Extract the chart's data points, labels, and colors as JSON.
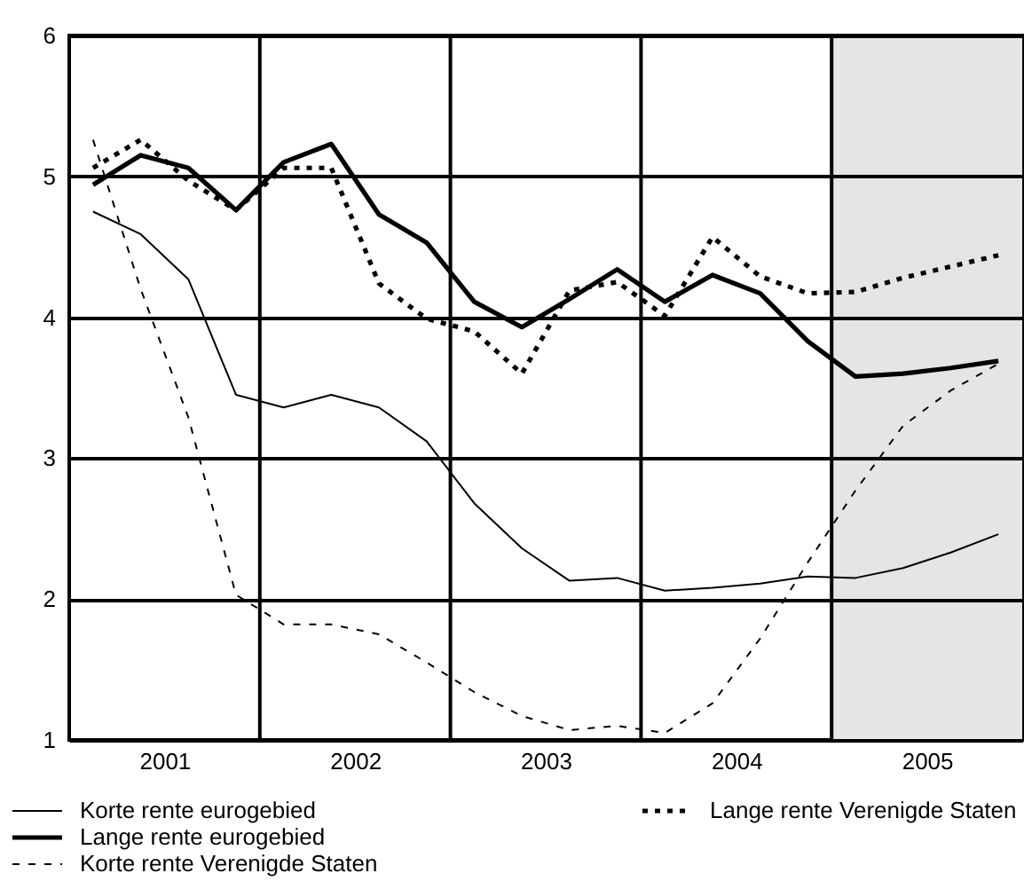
{
  "chart_data": {
    "type": "line",
    "x": [
      2001.125,
      2001.375,
      2001.625,
      2001.875,
      2002.125,
      2002.375,
      2002.625,
      2002.875,
      2003.125,
      2003.375,
      2003.625,
      2003.875,
      2004.125,
      2004.375,
      2004.625,
      2004.875,
      2005.125,
      2005.375,
      2005.625,
      2005.875
    ],
    "series": [
      {
        "name": "Korte rente eurogebied",
        "color": "#000000",
        "line_style": "solid",
        "values": [
          4.75,
          4.59,
          4.27,
          3.45,
          3.36,
          3.45,
          3.36,
          3.12,
          2.68,
          2.36,
          2.13,
          2.15,
          2.06,
          2.08,
          2.11,
          2.16,
          2.15,
          2.22,
          2.33,
          2.46
        ]
      },
      {
        "name": "Lange rente eurogebied",
        "color": "#000000",
        "line_style": "solid",
        "values": [
          4.94,
          5.15,
          5.06,
          4.76,
          5.1,
          5.23,
          4.73,
          4.53,
          4.11,
          3.93,
          4.13,
          4.34,
          4.11,
          4.3,
          4.17,
          3.83,
          3.58,
          3.6,
          3.64,
          3.69
        ]
      },
      {
        "name": "Korte rente Verenigde Staten",
        "color": "#000000",
        "line_style": "dashed",
        "values": [
          5.26,
          4.2,
          3.29,
          2.03,
          1.82,
          1.82,
          1.75,
          1.55,
          1.34,
          1.17,
          1.07,
          1.1,
          1.05,
          1.26,
          1.72,
          2.26,
          2.77,
          3.23,
          3.48,
          3.67
        ]
      },
      {
        "name": "Lange rente Verenigde Staten",
        "color": "#000000",
        "line_style": "dotted",
        "values": [
          5.06,
          5.26,
          4.97,
          4.76,
          5.06,
          5.06,
          4.24,
          3.99,
          3.9,
          3.6,
          4.19,
          4.25,
          4.01,
          4.57,
          4.29,
          4.17,
          4.18,
          4.28,
          4.36,
          4.44
        ]
      }
    ],
    "xlim": [
      2001,
      2006
    ],
    "xticks": [
      {
        "value": 2001.5,
        "label": "2001"
      },
      {
        "value": 2002.5,
        "label": "2002"
      },
      {
        "value": 2003.5,
        "label": "2003"
      },
      {
        "value": 2004.5,
        "label": "2004"
      },
      {
        "value": 2005.5,
        "label": "2005"
      }
    ],
    "ylim": [
      1,
      6
    ],
    "yticks": [
      1,
      2,
      3,
      4,
      5,
      6
    ],
    "grid": "y",
    "ref_lines": [
      {
        "axis": "x",
        "value": 2002,
        "label": null
      },
      {
        "axis": "x",
        "value": 2003,
        "label": null
      },
      {
        "axis": "x",
        "value": 2004,
        "label": null
      },
      {
        "axis": "x",
        "value": 2005,
        "label": null
      }
    ],
    "bands": [
      {
        "axis": "x",
        "from": 2005,
        "to": 2006,
        "label": null,
        "color": "#e5e5e5"
      }
    ],
    "legend": "bottom"
  }
}
